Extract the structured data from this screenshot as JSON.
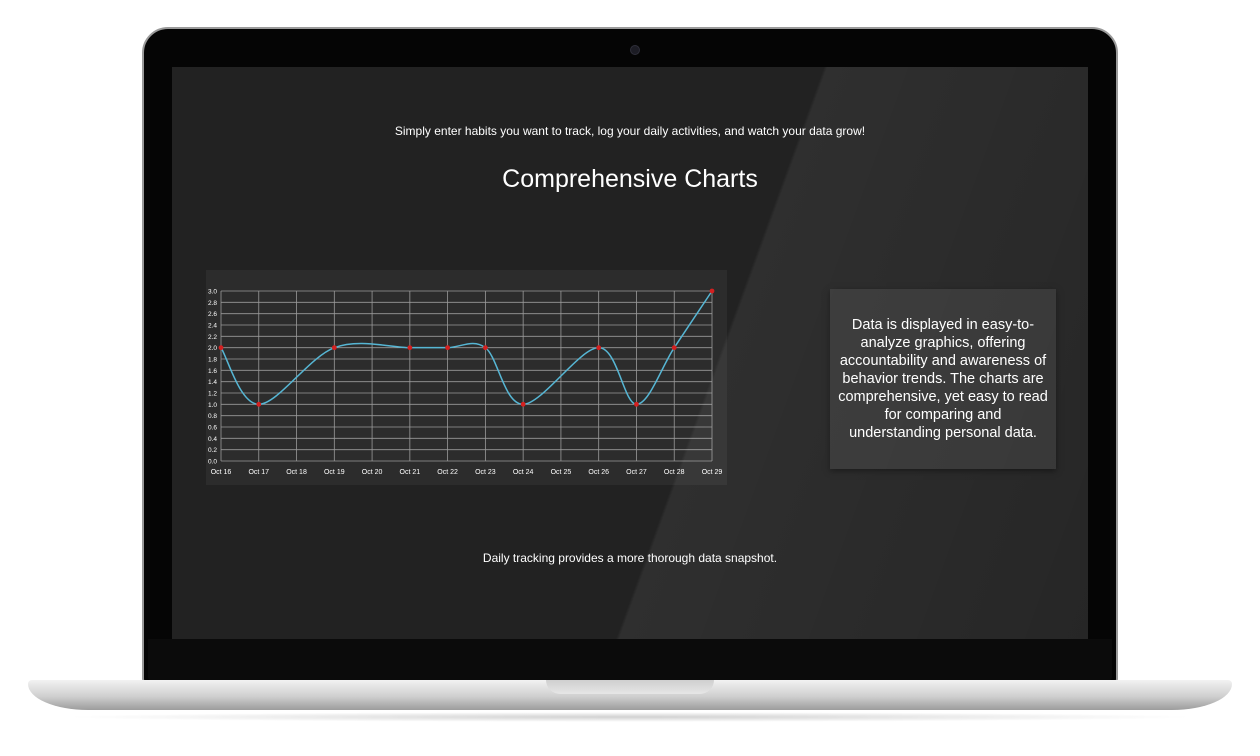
{
  "page": {
    "intro": "Simply enter habits you want to track, log your daily activities, and watch your data grow!",
    "heading": "Comprehensive Charts",
    "info": "Data is displayed in easy-to-analyze graphics, offering accountability and awareness of behavior trends. The charts are comprehensive, yet easy to read for comparing and understanding personal data.",
    "footer": "Daily tracking provides a more thorough data snapshot."
  },
  "colors": {
    "line": "#56b6d4",
    "point": "#d42020",
    "grid": "#9a9a9a",
    "text": "#ffffff"
  },
  "chart_data": {
    "type": "line",
    "categories": [
      "Oct 16",
      "Oct 17",
      "Oct 18",
      "Oct 19",
      "Oct 20",
      "Oct 21",
      "Oct 22",
      "Oct 23",
      "Oct 24",
      "Oct 25",
      "Oct 26",
      "Oct 27",
      "Oct 28",
      "Oct 29"
    ],
    "series": [
      {
        "values": [
          2,
          1,
          null,
          2,
          null,
          2,
          2,
          2,
          1,
          null,
          2,
          1,
          2,
          3
        ]
      }
    ],
    "yticks": [
      "0.0",
      "0.2",
      "0.4",
      "0.6",
      "0.8",
      "1.0",
      "1.2",
      "1.4",
      "1.6",
      "1.8",
      "2.0",
      "2.2",
      "2.4",
      "2.6",
      "2.8",
      "3.0"
    ],
    "ylim": [
      0,
      3
    ],
    "grid": true,
    "smoothed": true
  }
}
